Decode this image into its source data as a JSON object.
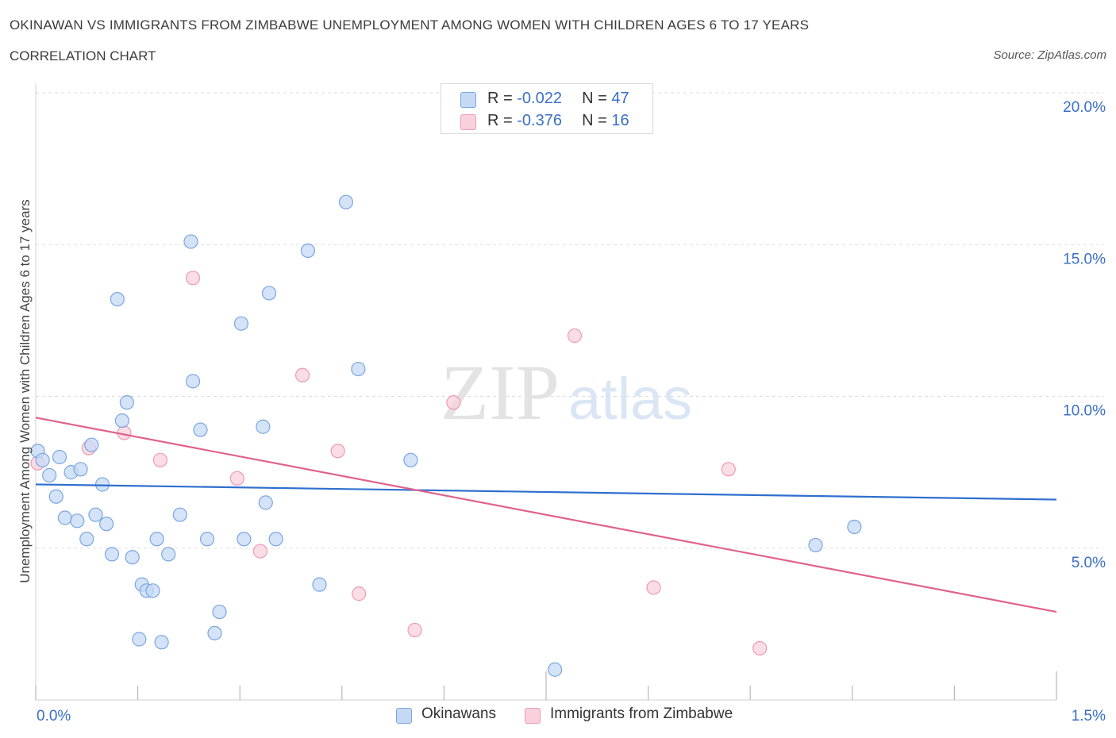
{
  "title": "OKINAWAN VS IMMIGRANTS FROM ZIMBABWE UNEMPLOYMENT AMONG WOMEN WITH CHILDREN AGES 6 TO 17 YEARS",
  "subtitle": "CORRELATION CHART",
  "source": "Source: ZipAtlas.com",
  "watermark": {
    "zip": "ZIP",
    "atlas": "atlas"
  },
  "colors": {
    "blue_fill": "#c5d9f5",
    "blue_stroke": "#7aa6e0",
    "blue_line": "#2e6fcf",
    "pink_fill": "#f9d1dd",
    "pink_stroke": "#ee9ab2",
    "pink_line": "#e0628c",
    "tick_label": "#3a6fc6",
    "grid": "#dddddd"
  },
  "legend": {
    "rows": [
      {
        "r_label": "R = ",
        "r_value": "-0.022",
        "n_label": "N = ",
        "n_value": "47"
      },
      {
        "r_label": "R = ",
        "r_value": "-0.376",
        "n_label": "N = ",
        "n_value": "16"
      }
    ]
  },
  "chart_data": {
    "type": "scatter",
    "xlabel": "",
    "ylabel": "Unemployment Among Women with Children Ages 6 to 17 years",
    "xlim": [
      0,
      1.5
    ],
    "ylim": [
      0,
      20
    ],
    "x_tick_labels": [
      {
        "value": 0,
        "label": "0.0%"
      },
      {
        "value": 1.5,
        "label": "1.5%"
      }
    ],
    "y_tick_labels": [
      {
        "value": 5,
        "label": "5.0%"
      },
      {
        "value": 10,
        "label": "10.0%"
      },
      {
        "value": 15,
        "label": "15.0%"
      },
      {
        "value": 20,
        "label": "20.0%"
      }
    ],
    "grid": "horizontal dashed",
    "legend_position": "bottom-center",
    "series": [
      {
        "name": "Okinawans",
        "trend": {
          "x": [
            0,
            1.5
          ],
          "y": [
            7.1,
            6.6
          ]
        },
        "points": [
          {
            "x": 0.003,
            "y": 8.2
          },
          {
            "x": 0.01,
            "y": 7.9
          },
          {
            "x": 0.02,
            "y": 7.4
          },
          {
            "x": 0.03,
            "y": 6.7
          },
          {
            "x": 0.035,
            "y": 8.0
          },
          {
            "x": 0.043,
            "y": 6.0
          },
          {
            "x": 0.052,
            "y": 7.5
          },
          {
            "x": 0.061,
            "y": 5.9
          },
          {
            "x": 0.066,
            "y": 7.6
          },
          {
            "x": 0.075,
            "y": 5.3
          },
          {
            "x": 0.082,
            "y": 8.4
          },
          {
            "x": 0.088,
            "y": 6.1
          },
          {
            "x": 0.098,
            "y": 7.1
          },
          {
            "x": 0.104,
            "y": 5.8
          },
          {
            "x": 0.112,
            "y": 4.8
          },
          {
            "x": 0.12,
            "y": 13.2
          },
          {
            "x": 0.127,
            "y": 9.2
          },
          {
            "x": 0.134,
            "y": 9.8
          },
          {
            "x": 0.142,
            "y": 4.7
          },
          {
            "x": 0.152,
            "y": 2.0
          },
          {
            "x": 0.156,
            "y": 3.8
          },
          {
            "x": 0.163,
            "y": 3.6
          },
          {
            "x": 0.172,
            "y": 3.6
          },
          {
            "x": 0.178,
            "y": 5.3
          },
          {
            "x": 0.185,
            "y": 1.9
          },
          {
            "x": 0.195,
            "y": 4.8
          },
          {
            "x": 0.212,
            "y": 6.1
          },
          {
            "x": 0.228,
            "y": 15.1
          },
          {
            "x": 0.231,
            "y": 10.5
          },
          {
            "x": 0.242,
            "y": 8.9
          },
          {
            "x": 0.252,
            "y": 5.3
          },
          {
            "x": 0.263,
            "y": 2.2
          },
          {
            "x": 0.27,
            "y": 2.9
          },
          {
            "x": 0.302,
            "y": 12.4
          },
          {
            "x": 0.306,
            "y": 5.3
          },
          {
            "x": 0.334,
            "y": 9.0
          },
          {
            "x": 0.338,
            "y": 6.5
          },
          {
            "x": 0.343,
            "y": 13.4
          },
          {
            "x": 0.353,
            "y": 5.3
          },
          {
            "x": 0.4,
            "y": 14.8
          },
          {
            "x": 0.417,
            "y": 3.8
          },
          {
            "x": 0.456,
            "y": 16.4
          },
          {
            "x": 0.474,
            "y": 10.9
          },
          {
            "x": 0.551,
            "y": 7.9
          },
          {
            "x": 0.763,
            "y": 1.0
          },
          {
            "x": 1.146,
            "y": 5.1
          },
          {
            "x": 1.203,
            "y": 5.7
          }
        ]
      },
      {
        "name": "Immigrants from Zimbabwe",
        "trend": {
          "x": [
            0,
            1.5
          ],
          "y": [
            9.3,
            2.9
          ]
        },
        "points": [
          {
            "x": 0.003,
            "y": 7.8
          },
          {
            "x": 0.078,
            "y": 8.3
          },
          {
            "x": 0.13,
            "y": 8.8
          },
          {
            "x": 0.183,
            "y": 7.9
          },
          {
            "x": 0.231,
            "y": 13.9
          },
          {
            "x": 0.296,
            "y": 7.3
          },
          {
            "x": 0.33,
            "y": 4.9
          },
          {
            "x": 0.392,
            "y": 10.7
          },
          {
            "x": 0.444,
            "y": 8.2
          },
          {
            "x": 0.475,
            "y": 3.5
          },
          {
            "x": 0.557,
            "y": 2.3
          },
          {
            "x": 0.614,
            "y": 9.8
          },
          {
            "x": 0.792,
            "y": 12.0
          },
          {
            "x": 0.908,
            "y": 3.7
          },
          {
            "x": 1.018,
            "y": 7.6
          },
          {
            "x": 1.064,
            "y": 1.7
          }
        ]
      }
    ]
  }
}
